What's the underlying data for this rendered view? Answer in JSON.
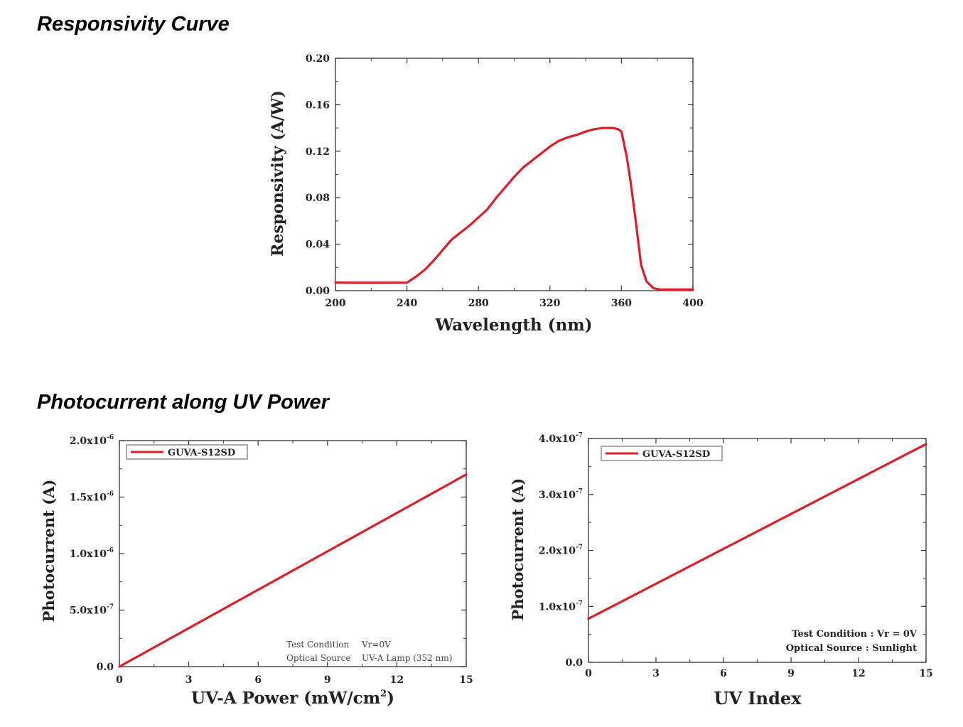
{
  "headings": {
    "responsivity": "Responsivity Curve",
    "photocurrent": "Photocurrent along UV Power"
  },
  "chart_data": [
    {
      "type": "line",
      "xlabel": "Wavelength (nm)",
      "ylabel": "Responsivity (A/W)",
      "xlim": [
        200,
        400
      ],
      "ylim": [
        0,
        0.2
      ],
      "xticks": [
        200,
        240,
        280,
        320,
        360,
        400
      ],
      "xtick_labels": [
        "200",
        "240",
        "280",
        "320",
        "360",
        "400"
      ],
      "yticks": [
        0,
        0.04,
        0.08,
        0.12,
        0.16,
        0.2
      ],
      "ytick_labels": [
        "0.00",
        "0.04",
        "0.08",
        "0.12",
        "0.16",
        "0.20"
      ],
      "grid": false,
      "line_color": "#d8202a",
      "series": [
        {
          "x": [
            200,
            210,
            220,
            230,
            240,
            245,
            250,
            255,
            260,
            265,
            270,
            275,
            280,
            285,
            290,
            295,
            300,
            305,
            310,
            315,
            320,
            325,
            330,
            335,
            340,
            345,
            350,
            353,
            355,
            358,
            360,
            363,
            365,
            368,
            371,
            374,
            378,
            382,
            390,
            400
          ],
          "y": [
            0.007,
            0.0068,
            0.0068,
            0.0068,
            0.0069,
            0.012,
            0.018,
            0.026,
            0.035,
            0.044,
            0.05,
            0.056,
            0.063,
            0.07,
            0.08,
            0.089,
            0.098,
            0.106,
            0.112,
            0.118,
            0.124,
            0.129,
            0.132,
            0.134,
            0.137,
            0.139,
            0.14,
            0.14,
            0.14,
            0.139,
            0.137,
            0.115,
            0.095,
            0.06,
            0.022,
            0.008,
            0.002,
            0.001,
            0.001,
            0.001
          ]
        }
      ]
    },
    {
      "type": "line",
      "xlabel_main": "UV-A Power (mW/cm",
      "xlabel_sup": "2",
      "xlabel_end": ")",
      "ylabel": "Photocurrent (A)",
      "xlim": [
        0,
        15
      ],
      "ylim": [
        0,
        2e-06
      ],
      "xticks": [
        0,
        3,
        6,
        9,
        12,
        15
      ],
      "xtick_labels": [
        "0",
        "3",
        "6",
        "9",
        "12",
        "15"
      ],
      "yticks": [
        0,
        5e-07,
        1e-06,
        1.5e-06,
        2e-06
      ],
      "ytick_labels": [
        {
          "base": "0.0",
          "exp": ""
        },
        {
          "base": "5.0x10",
          "exp": "-7"
        },
        {
          "base": "1.0x10",
          "exp": "-6"
        },
        {
          "base": "1.5x10",
          "exp": "-6"
        },
        {
          "base": "2.0x10",
          "exp": "-6"
        }
      ],
      "grid": false,
      "legend_position": "top-left",
      "line_color": "#d8202a",
      "series": [
        {
          "name": "GUVA-S12SD",
          "x": [
            0,
            15
          ],
          "y": [
            0,
            1.7e-06
          ]
        }
      ],
      "annotation": {
        "label1": "Test Condition",
        "value1": "Vr=0V",
        "label2": "Optical Source",
        "value2": "UV-A Lamp (352 nm)"
      }
    },
    {
      "type": "line",
      "xlabel": "UV Index",
      "ylabel": "Photocurrent (A)",
      "xlim": [
        0,
        15
      ],
      "ylim": [
        0,
        4e-07
      ],
      "xticks": [
        0,
        3,
        6,
        9,
        12,
        15
      ],
      "xtick_labels": [
        "0",
        "3",
        "6",
        "9",
        "12",
        "15"
      ],
      "yticks": [
        0,
        1e-07,
        2e-07,
        3e-07,
        4e-07
      ],
      "ytick_labels": [
        {
          "base": "0.0",
          "exp": ""
        },
        {
          "base": "1.0x10",
          "exp": "-7"
        },
        {
          "base": "2.0x10",
          "exp": "-7"
        },
        {
          "base": "3.0x10",
          "exp": "-7"
        },
        {
          "base": "4.0x10",
          "exp": "-7"
        }
      ],
      "grid": false,
      "legend_position": "top-left",
      "line_color": "#d8202a",
      "series": [
        {
          "name": "GUVA-S12SD",
          "x": [
            0,
            15
          ],
          "y": [
            7.8e-08,
            3.9e-07
          ]
        }
      ],
      "annotation": {
        "line1": "Test Condition : Vr = 0V",
        "line2": "Optical Source : Sunlight"
      }
    }
  ]
}
